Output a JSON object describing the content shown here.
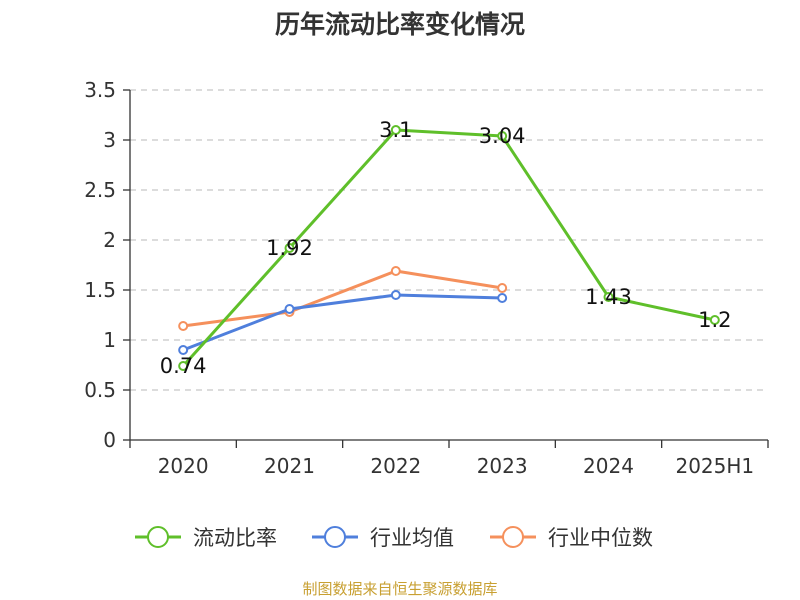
{
  "chart_data": {
    "type": "line",
    "title": "历年流动比率变化情况",
    "categories": [
      "2020",
      "2021",
      "2022",
      "2023",
      "2024",
      "2025H1"
    ],
    "ylim": [
      0,
      3.5
    ],
    "yticks": [
      "0",
      "0.5",
      "1",
      "1.5",
      "2",
      "2.5",
      "3",
      "3.5"
    ],
    "grid": true,
    "legend_position": "bottom",
    "series": [
      {
        "name": "流动比率",
        "color": "#5fbf2a",
        "values": [
          0.74,
          1.92,
          3.1,
          3.04,
          1.43,
          1.2
        ],
        "labels": [
          "0.74",
          "1.92",
          "3.1",
          "3.04",
          "1.43",
          "1.2"
        ]
      },
      {
        "name": "行业均值",
        "color": "#4f7fdc",
        "values": [
          0.9,
          1.31,
          1.45,
          1.42,
          null,
          null
        ]
      },
      {
        "name": "行业中位数",
        "color": "#f5905c",
        "values": [
          1.14,
          1.28,
          1.69,
          1.52,
          null,
          null
        ]
      }
    ]
  },
  "footer": {
    "source": "制图数据来自恒生聚源数据库"
  }
}
